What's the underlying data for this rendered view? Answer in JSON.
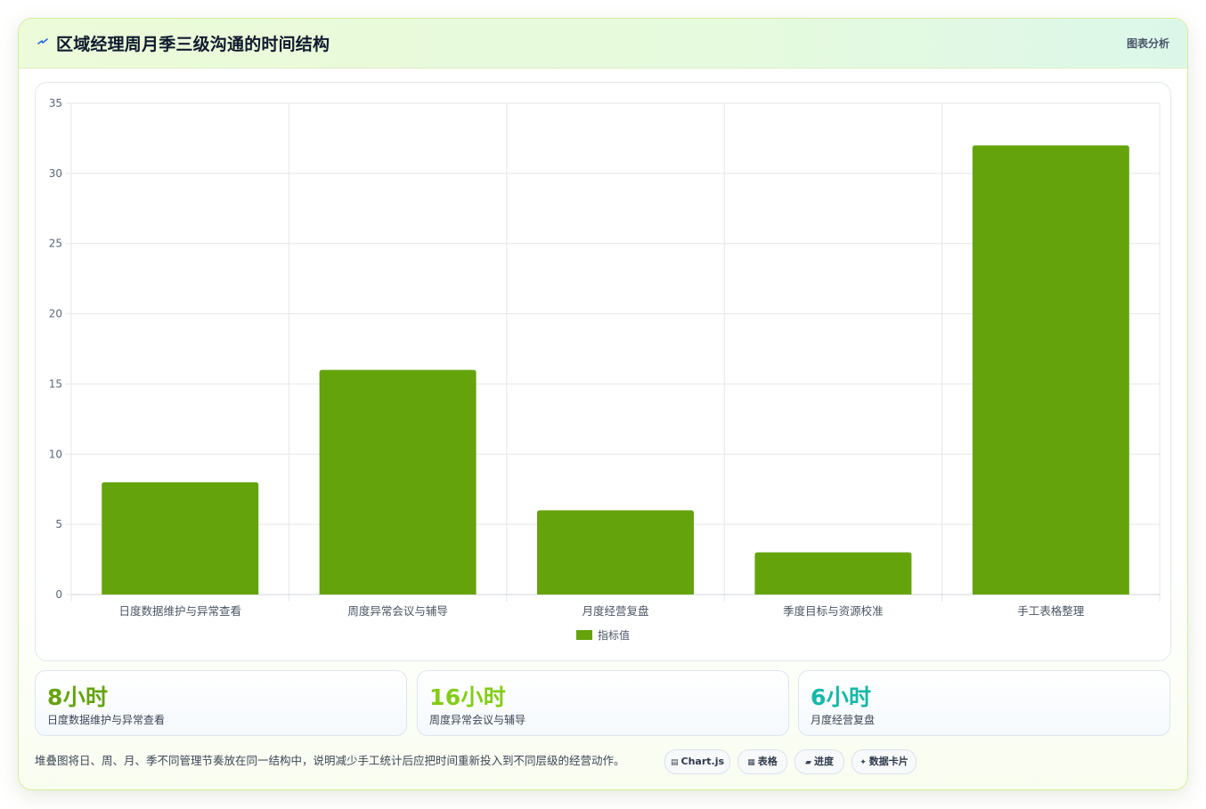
{
  "header": {
    "title": "区域经理周月季三级沟通的时间结构",
    "tag": "图表分析",
    "icon": "lightning-icon"
  },
  "chart_data": {
    "type": "bar",
    "categories": [
      "日度数据维护与异常查看",
      "周度异常会议与辅导",
      "月度经营复盘",
      "季度目标与资源校准",
      "手工表格整理"
    ],
    "series": [
      {
        "name": "指标值",
        "values": [
          8,
          16,
          6,
          3,
          32
        ],
        "color": "#65a30d"
      }
    ],
    "ylim": [
      0,
      35
    ],
    "yticks": [
      0,
      5,
      10,
      15,
      20,
      25,
      30,
      35
    ],
    "grid": true,
    "legend": "bottom-center"
  },
  "stats": [
    {
      "value": "8小时",
      "label": "日度数据维护与异常查看",
      "color": "#65a30d"
    },
    {
      "value": "16小时",
      "label": "周度异常会议与辅导",
      "color": "#84cc16"
    },
    {
      "value": "6小时",
      "label": "月度经营复盘",
      "color": "#14b8a6"
    }
  ],
  "footer": {
    "note": "堆叠图将日、周、月、季不同管理节奏放在同一结构中，说明减少手工统计后应把时间重新投入到不同层级的经营动作。",
    "pills": [
      {
        "icon": "▤",
        "icon_name": "chart-icon",
        "label": "Chart.js"
      },
      {
        "icon": "▦",
        "icon_name": "table-icon",
        "label": "表格"
      },
      {
        "icon": "▰",
        "icon_name": "progress-icon",
        "label": "进度"
      },
      {
        "icon": "✦",
        "icon_name": "card-icon",
        "label": "数据卡片"
      }
    ]
  }
}
